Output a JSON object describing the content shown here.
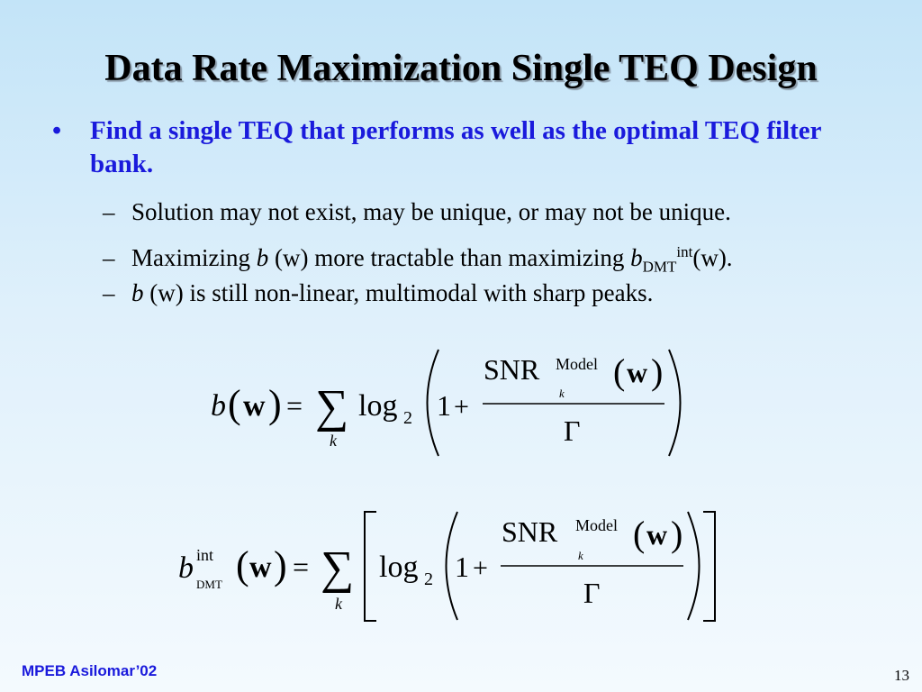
{
  "slide": {
    "title": "Data Rate Maximization Single TEQ Design",
    "main_bullet": {
      "symbol": "•",
      "text": "Find a single TEQ that performs as well as the optimal TEQ filter bank."
    },
    "sub_bullets": {
      "dash": "–",
      "item1": "Solution may not exist, may be unique, or may not be unique.",
      "item2": {
        "pre": "Maximizing ",
        "b": "b",
        "mid": " (w) more tractable than maximizing ",
        "b2": "b",
        "subscript": "DMT",
        "superscript": "int",
        "post": "(w)."
      },
      "item3": {
        "b": "b",
        "rest": " (w) is still non-linear, multimodal with sharp peaks."
      }
    },
    "equation1": {
      "lhs_b": "b",
      "lhs_arg": "w",
      "equals": "=",
      "sum_index": "k",
      "log": "log",
      "log_base": "2",
      "one": "1",
      "plus": "+",
      "snr": "SNR",
      "model": "Model",
      "snr_index": "k",
      "num_arg": "w",
      "gamma": "Γ"
    },
    "equation2": {
      "lhs_b": "b",
      "lhs_sup": "int",
      "lhs_sub": "DMT",
      "lhs_arg": "w",
      "equals": "=",
      "sum_index": "k",
      "log": "log",
      "log_base": "2",
      "one": "1",
      "plus": "+",
      "snr": "SNR",
      "model": "Model",
      "snr_index": "k",
      "num_arg": "w",
      "gamma": "Γ"
    },
    "footer": "MPEB Asilomar’02",
    "page_number": "13"
  }
}
